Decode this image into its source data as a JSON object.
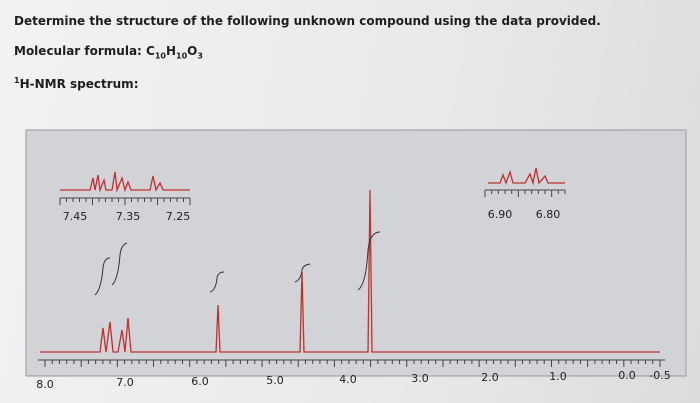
{
  "question": "Determine the structure of the following unknown compound using the data provided.",
  "formula": {
    "label": "Molecular formula: ",
    "parts": [
      "C",
      "10",
      "H",
      "10",
      "O",
      "3"
    ]
  },
  "spectrum_heading": {
    "sup": "1",
    "text": "H-NMR spectrum:"
  },
  "spectrum": {
    "axis_labels": [
      "8.0",
      "7.0",
      "6.0",
      "5.0",
      "4.0",
      "3.0",
      "2.0",
      "1.0",
      "0.0",
      "-0.5"
    ],
    "inset_left_labels": [
      "7.45",
      "7.35",
      "7.25"
    ],
    "inset_right_labels": [
      "6.90",
      "6.80"
    ]
  }
}
